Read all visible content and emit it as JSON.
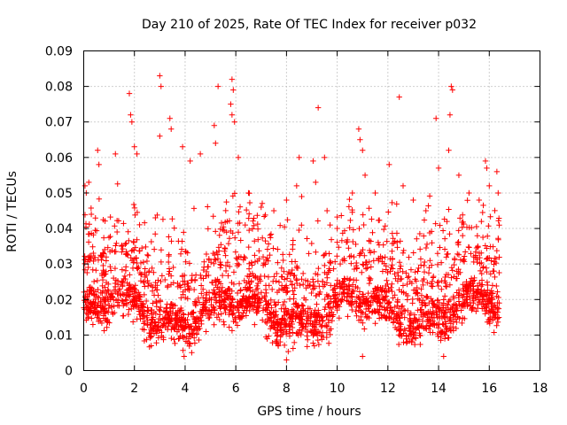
{
  "chart_data": {
    "type": "scatter",
    "title": "Day 210 of 2025, Rate Of TEC Index for receiver p032",
    "xlabel": "GPS time / hours",
    "ylabel": "ROTI / TECUs",
    "xlim": [
      0,
      18
    ],
    "ylim": [
      0,
      0.09
    ],
    "xticks": [
      "0",
      "2",
      "4",
      "6",
      "8",
      "10",
      "12",
      "14",
      "16",
      "18"
    ],
    "yticks": [
      "0",
      "0.01",
      "0.02",
      "0.03",
      "0.04",
      "0.05",
      "0.06",
      "0.07",
      "0.08",
      "0.09"
    ],
    "grid": true,
    "marker": "+",
    "color": "#ff0000",
    "x_data_range": [
      0,
      16.4
    ],
    "series": [
      {
        "name": "ROTI",
        "points": [
          [
            0.05,
            0.052
          ],
          [
            0.1,
            0.05
          ],
          [
            0.2,
            0.053
          ],
          [
            0.3,
            0.044
          ],
          [
            0.55,
            0.062
          ],
          [
            0.6,
            0.058
          ],
          [
            1.25,
            0.061
          ],
          [
            1.8,
            0.078
          ],
          [
            1.85,
            0.072
          ],
          [
            1.9,
            0.07
          ],
          [
            2.0,
            0.063
          ],
          [
            2.1,
            0.061
          ],
          [
            3.0,
            0.083
          ],
          [
            3.05,
            0.08
          ],
          [
            3.0,
            0.066
          ],
          [
            3.4,
            0.071
          ],
          [
            3.45,
            0.068
          ],
          [
            3.9,
            0.063
          ],
          [
            4.2,
            0.059
          ],
          [
            4.6,
            0.061
          ],
          [
            5.15,
            0.069
          ],
          [
            5.2,
            0.064
          ],
          [
            5.3,
            0.08
          ],
          [
            5.85,
            0.082
          ],
          [
            5.9,
            0.079
          ],
          [
            5.8,
            0.075
          ],
          [
            5.85,
            0.072
          ],
          [
            5.95,
            0.07
          ],
          [
            6.1,
            0.06
          ],
          [
            6.5,
            0.05
          ],
          [
            7.0,
            0.046
          ],
          [
            7.5,
            0.045
          ],
          [
            8.0,
            0.048
          ],
          [
            8.4,
            0.052
          ],
          [
            8.5,
            0.06
          ],
          [
            8.6,
            0.049
          ],
          [
            9.05,
            0.059
          ],
          [
            9.15,
            0.053
          ],
          [
            9.25,
            0.074
          ],
          [
            9.5,
            0.06
          ],
          [
            9.6,
            0.045
          ],
          [
            10.0,
            0.04
          ],
          [
            10.6,
            0.05
          ],
          [
            10.85,
            0.068
          ],
          [
            10.9,
            0.065
          ],
          [
            11.0,
            0.062
          ],
          [
            11.1,
            0.055
          ],
          [
            11.5,
            0.05
          ],
          [
            12.05,
            0.058
          ],
          [
            12.45,
            0.077
          ],
          [
            12.6,
            0.052
          ],
          [
            13.0,
            0.048
          ],
          [
            13.5,
            0.045
          ],
          [
            13.9,
            0.071
          ],
          [
            14.0,
            0.057
          ],
          [
            14.4,
            0.062
          ],
          [
            14.45,
            0.072
          ],
          [
            14.5,
            0.08
          ],
          [
            14.55,
            0.079
          ],
          [
            14.8,
            0.055
          ],
          [
            15.2,
            0.05
          ],
          [
            15.6,
            0.048
          ],
          [
            15.85,
            0.059
          ],
          [
            15.9,
            0.057
          ],
          [
            16.0,
            0.052
          ],
          [
            16.3,
            0.056
          ],
          [
            16.35,
            0.05
          ],
          [
            8.0,
            0.003
          ],
          [
            11.0,
            0.004
          ],
          [
            14.2,
            0.004
          ]
        ]
      }
    ]
  }
}
